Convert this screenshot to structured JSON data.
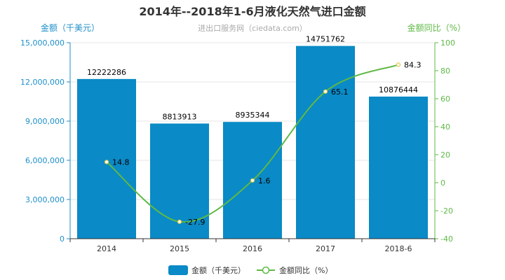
{
  "chart_data": {
    "type": "bar",
    "title": "2014年--2018年1-6月液化天然气进口金额",
    "subtitle": "进出口服务网（ciedata.com）",
    "categories": [
      "2014",
      "2015",
      "2016",
      "2017",
      "2018-6"
    ],
    "ylabel_left": "金额（千美元）",
    "ylabel_right": "金额同比（%）",
    "ylim_left": [
      0,
      15000000
    ],
    "yticks_left": [
      "0",
      "3,000,000",
      "6,000,000",
      "9,000,000",
      "12,000,000",
      "15,000,000"
    ],
    "ylim_right": [
      -40,
      100
    ],
    "yticks_right": [
      "-40",
      "-20",
      "0",
      "20",
      "40",
      "60",
      "80",
      "100"
    ],
    "series": [
      {
        "name": "金额（千美元）",
        "type": "bar",
        "axis": "left",
        "values": [
          12222286,
          8813913,
          8935344,
          14751762,
          10876444
        ],
        "labels": [
          "12222286",
          "8813913",
          "8935344",
          "14751762",
          "10876444"
        ]
      },
      {
        "name": "金额同比（%）",
        "type": "line",
        "axis": "right",
        "values": [
          14.8,
          -27.9,
          1.6,
          65.1,
          84.3
        ],
        "labels": [
          "14.8",
          "-27.9",
          "1.6",
          "65.1",
          "84.3"
        ]
      }
    ],
    "legend": "bottom",
    "grid": true,
    "colors": {
      "bar": "#0a8ac6",
      "line": "#5fb946",
      "left_axis": "#1e8fc8",
      "right_axis": "#5fb946"
    }
  }
}
